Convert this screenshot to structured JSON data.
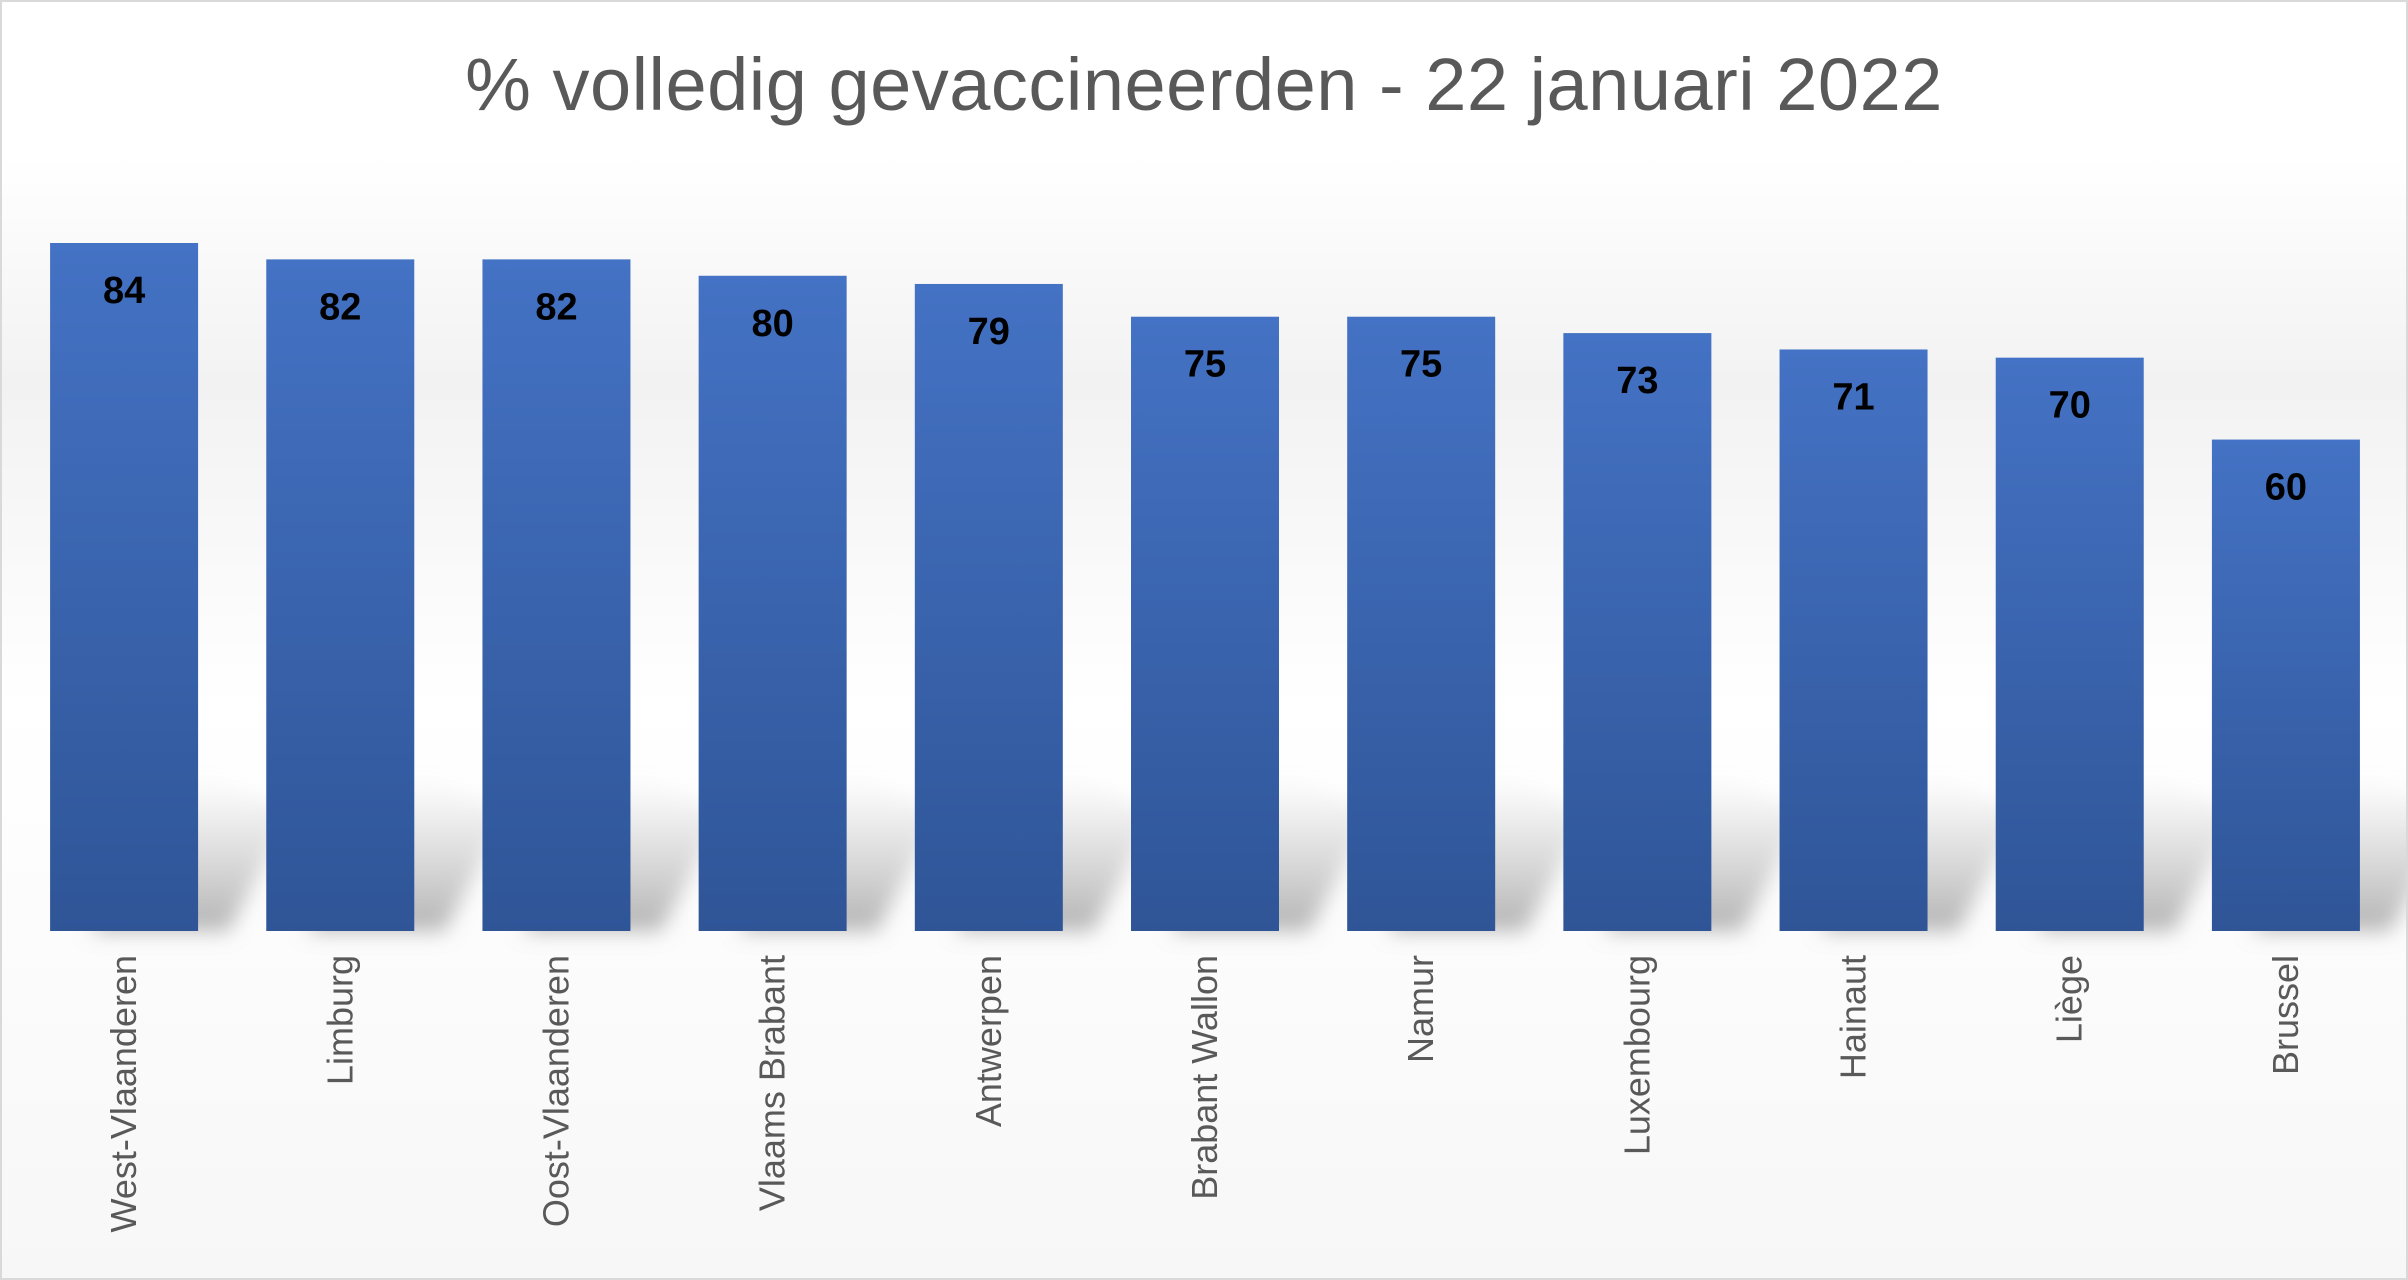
{
  "chart_data": {
    "type": "bar",
    "title": "% volledig gevaccineerden - 22 januari 2022",
    "categories": [
      "West-Vlaanderen",
      "Limburg",
      "Oost-Vlaanderen",
      "Vlaams Brabant",
      "Antwerpen",
      "Brabant Wallon",
      "Namur",
      "Luxembourg",
      "Hainaut",
      "Liège",
      "Brussel"
    ],
    "values": [
      84,
      82,
      82,
      80,
      79,
      75,
      75,
      73,
      71,
      70,
      60
    ],
    "data_labels": [
      "84",
      "82",
      "82",
      "80",
      "79",
      "75",
      "75",
      "73",
      "71",
      "70",
      "60"
    ],
    "xlabel": "",
    "ylabel": "",
    "ylim": [
      0,
      84
    ],
    "grid": false,
    "legend": "none",
    "bar_color": "#4472c4",
    "bar_color_dark": "#2f5597"
  }
}
